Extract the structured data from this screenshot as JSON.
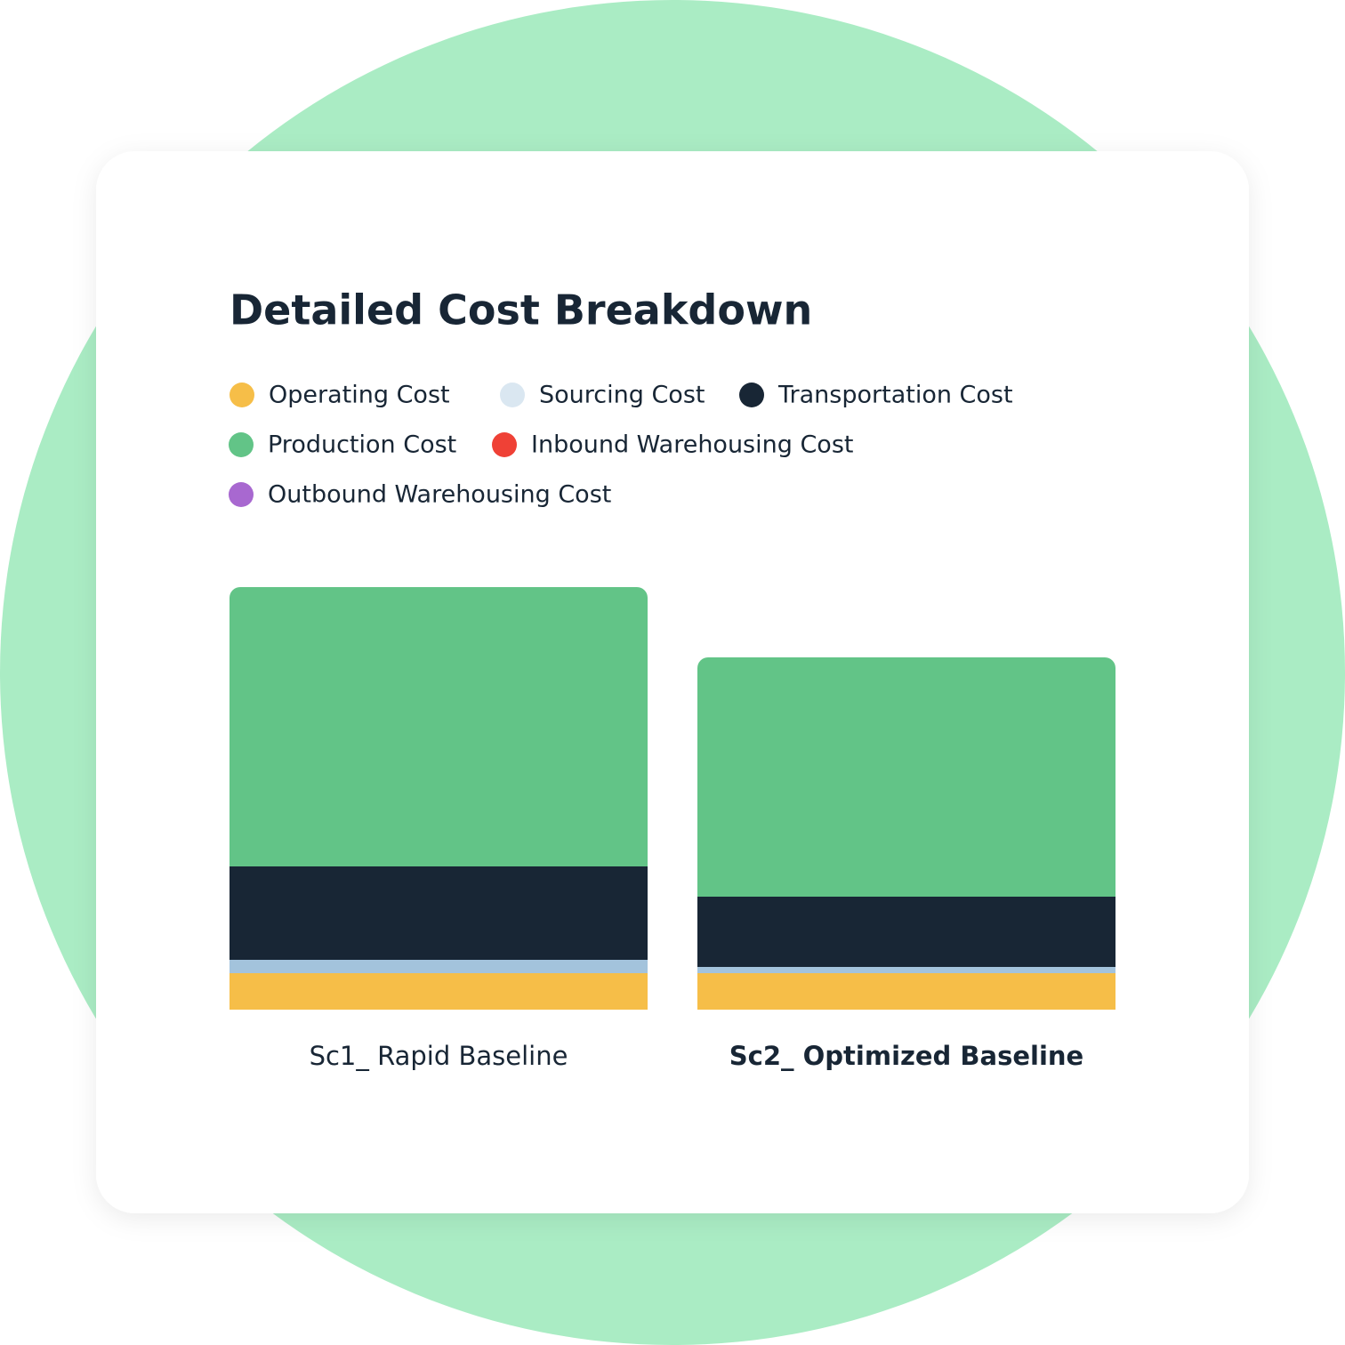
{
  "chart_data": {
    "type": "stacked-bar",
    "title": "Detailed Cost Breakdown",
    "categories": [
      "Sc1_ Rapid Baseline",
      "Sc2_ Optimized Baseline"
    ],
    "series": [
      {
        "name": "Operating Cost",
        "color": "#f6be48",
        "values": [
          41,
          41
        ]
      },
      {
        "name": "Sourcing Cost",
        "color": "#a3c3dc",
        "values": [
          15,
          7
        ]
      },
      {
        "name": "Transportation Cost",
        "color": "#182635",
        "values": [
          105,
          79
        ]
      },
      {
        "name": "Production Cost",
        "color": "#62c487",
        "values": [
          314,
          269
        ]
      },
      {
        "name": "Inbound Warehousing Cost",
        "color": "#ef4136",
        "values": [
          0,
          0
        ]
      },
      {
        "name": "Outbound Warehousing Cost",
        "color": "#a868d0",
        "values": [
          0,
          0
        ]
      }
    ],
    "ylim": [
      0,
      475
    ]
  }
}
